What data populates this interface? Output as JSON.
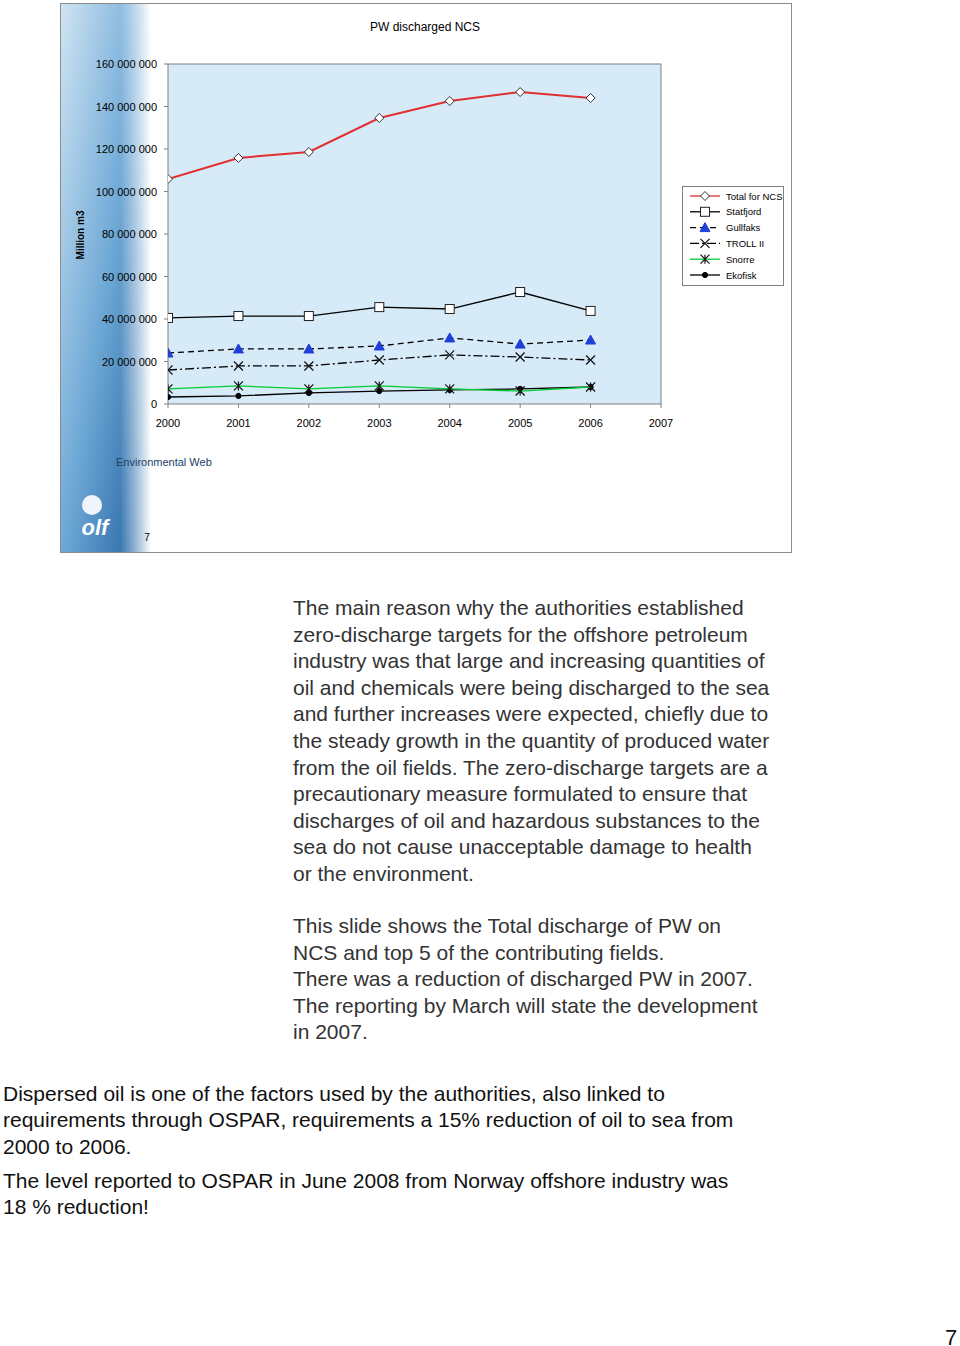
{
  "chart_data": {
    "type": "line",
    "title": "PW discharged NCS",
    "y_label": "Million m3",
    "x": [
      2000,
      2001,
      2002,
      2003,
      2004,
      2005,
      2006
    ],
    "xlim": [
      2000,
      2007
    ],
    "xticks": [
      2000,
      2001,
      2002,
      2003,
      2004,
      2005,
      2006,
      2007
    ],
    "ylim": [
      0,
      160000000
    ],
    "yticks": [
      0,
      {
        "value": 20000000,
        "label": "20 000 000"
      },
      {
        "value": 40000000,
        "label": "40 000 000"
      },
      {
        "value": 60000000,
        "label": "60 000 000"
      },
      {
        "value": 80000000,
        "label": "80 000 000"
      },
      {
        "value": 100000000,
        "label": "100 000 000"
      },
      {
        "value": 120000000,
        "label": "120 000 000"
      },
      {
        "value": 140000000,
        "label": "140 000 000"
      },
      {
        "value": 160000000,
        "label": "160 000 000"
      }
    ],
    "grid": false,
    "legend": "right",
    "series": [
      {
        "name": "Total for NCS",
        "color": "#e03030",
        "marker": "diamond",
        "line_style": "solid",
        "values": [
          105900000,
          115800000,
          118600000,
          134600000,
          142600000,
          146800000,
          144000000
        ]
      },
      {
        "name": "Statfjord",
        "color": "#000000",
        "marker": "square",
        "line_style": "solid",
        "values": [
          40500000,
          41400000,
          41400000,
          45600000,
          44700000,
          52700000,
          43800000
        ]
      },
      {
        "name": "Gullfaks",
        "color": "#000000",
        "marker": "triangle",
        "line_style": "dashed",
        "values": [
          24000000,
          25900000,
          25900000,
          27300000,
          31100000,
          28200000,
          30100000
        ]
      },
      {
        "name": "TROLL II",
        "color": "#000000",
        "marker": "x",
        "line_style": "dashdot",
        "values": [
          16000000,
          17900000,
          17900000,
          20700000,
          23100000,
          22100000,
          20700000
        ]
      },
      {
        "name": "Snorre",
        "color": "#00cc33",
        "marker": "star",
        "line_style": "solid",
        "values": [
          7100000,
          8500000,
          7100000,
          8500000,
          7100000,
          6100000,
          8000000
        ]
      },
      {
        "name": "Ekofisk",
        "color": "#000000",
        "marker": "circle",
        "line_style": "solid",
        "values": [
          3300000,
          3800000,
          5200000,
          6100000,
          6600000,
          7100000,
          8000000
        ]
      }
    ]
  },
  "slide": {
    "footer": "Environmental Web",
    "number": 7,
    "logo": "olf"
  },
  "notes": {
    "paragraphs": [
      [
        "The main reason why the authorities established",
        "zero-discharge targets for the offshore petroleum",
        "industry was that large and increasing quantities of",
        "oil and chemicals were being discharged to the sea",
        "and further increases were expected, chiefly due to",
        "the steady growth in the quantity of produced water",
        "from the oil fields. The zero-discharge targets are a",
        "precautionary measure formulated to ensure that",
        "discharges of oil and hazardous substances to the",
        "sea do not cause unacceptable damage to health",
        "or the environment."
      ],
      [
        "This slide shows the Total discharge of PW on",
        "NCS and top 5 of the contributing fields.",
        "There was a reduction of discharged PW in 2007.",
        "The reporting by March will state the development",
        "in 2007."
      ]
    ]
  },
  "body": {
    "paragraphs": [
      [
        "Dispersed oil is one of the factors used by the authorities, also linked to",
        "requirements through OSPAR, requirements a 15% reduction of oil to sea from",
        "2000 to 2006."
      ],
      [
        "The level reported to OSPAR in June 2008 from Norway offshore industry was",
        "18 % reduction!"
      ]
    ]
  },
  "page_number": 7
}
